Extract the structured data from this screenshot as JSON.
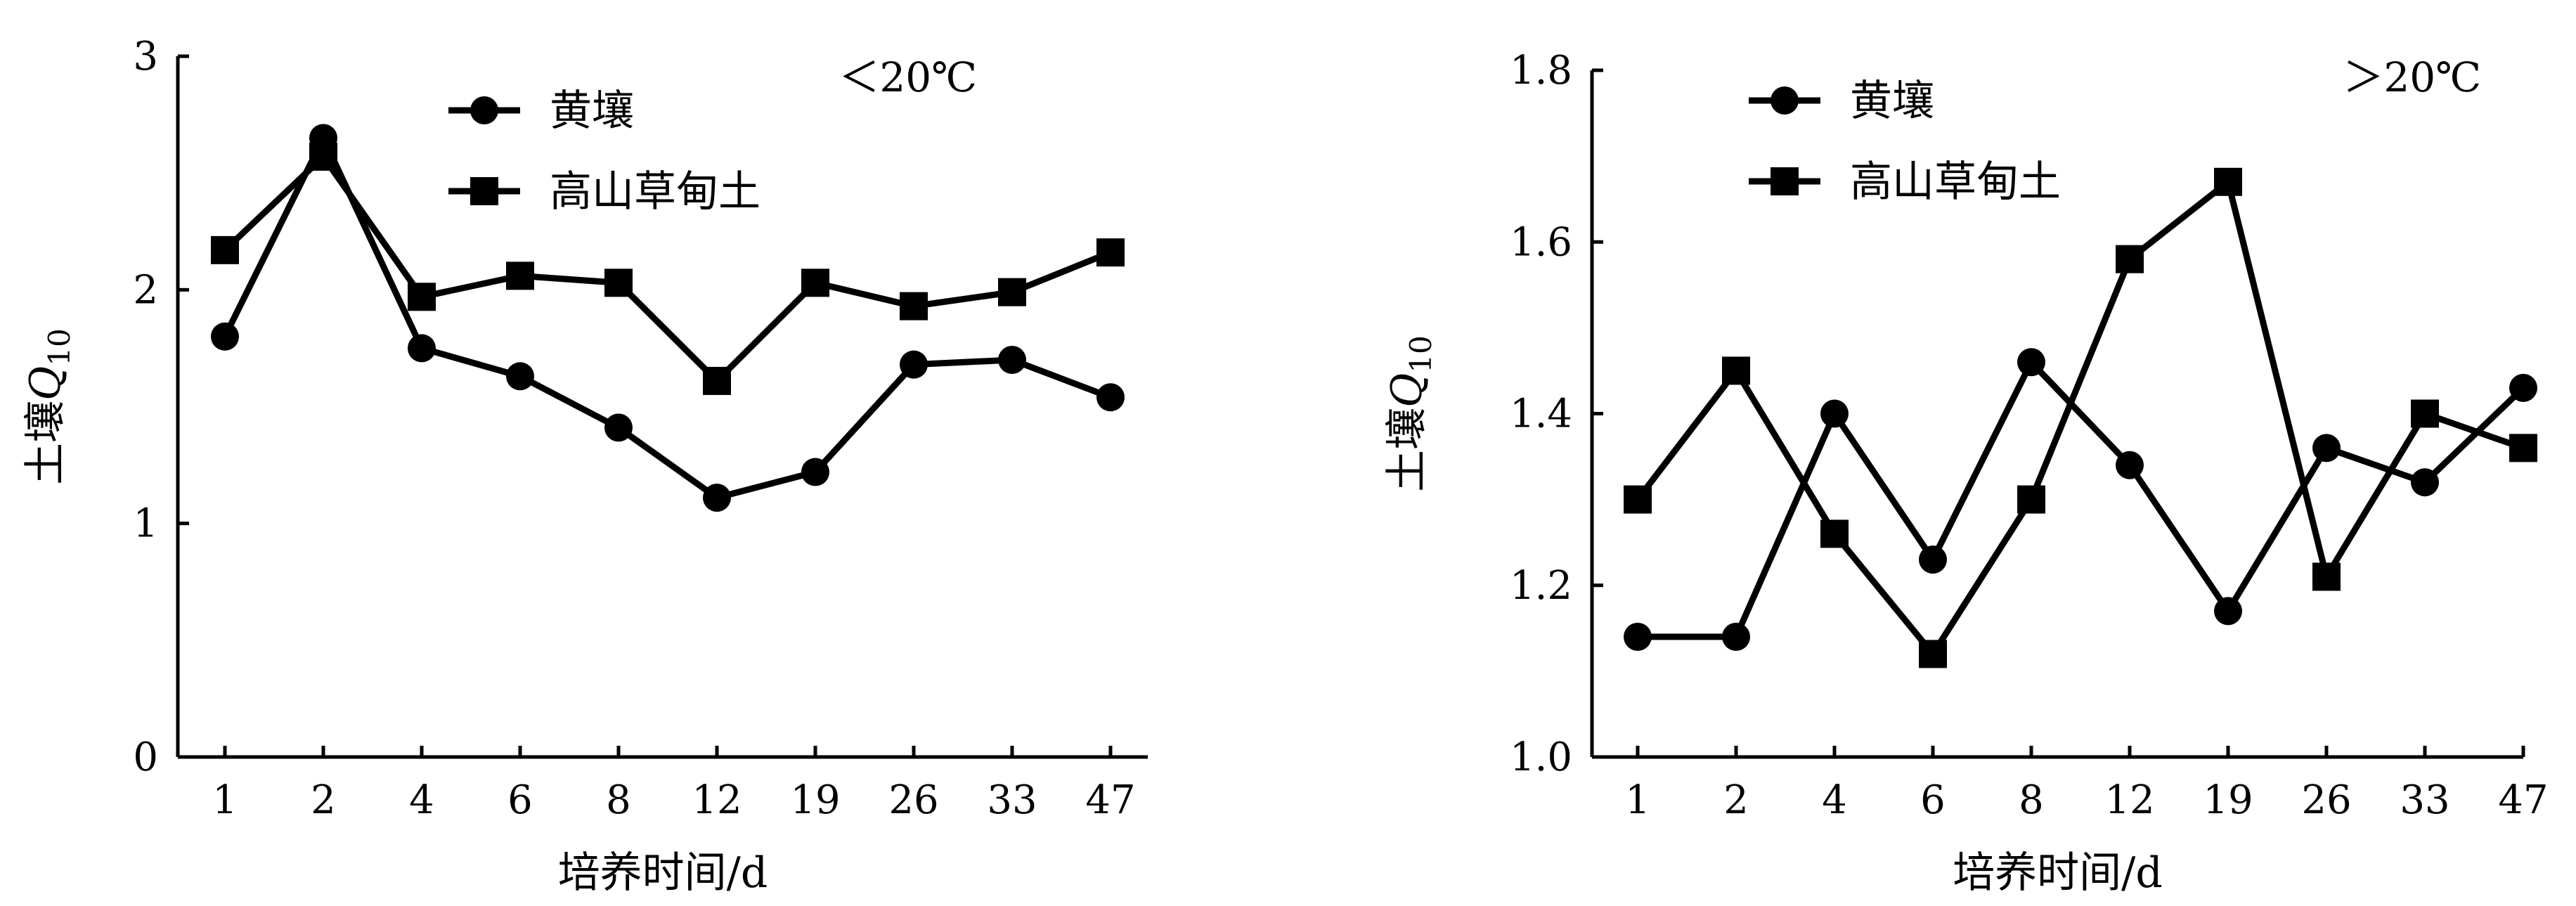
{
  "chart_data": [
    {
      "type": "line",
      "annotation": "＜20℃",
      "xlabel": "培养时间/d",
      "ylabel_prefix": "土壤",
      "ylabel_var": "Q",
      "ylabel_sub": "10",
      "categories": [
        "1",
        "2",
        "4",
        "6",
        "8",
        "12",
        "19",
        "26",
        "33",
        "47"
      ],
      "ylim": [
        0,
        3
      ],
      "yticks": [
        "0",
        "1",
        "2",
        "3"
      ],
      "legend_position": "top-left",
      "series": [
        {
          "name": "黄壤",
          "marker": "circle",
          "values": [
            1.8,
            2.65,
            1.75,
            1.63,
            1.41,
            1.11,
            1.22,
            1.68,
            1.7,
            1.54
          ]
        },
        {
          "name": "高山草甸土",
          "marker": "square",
          "values": [
            2.17,
            2.57,
            1.97,
            2.06,
            2.03,
            1.61,
            2.03,
            1.93,
            1.99,
            2.16
          ]
        }
      ]
    },
    {
      "type": "line",
      "annotation": "＞20℃",
      "xlabel": "培养时间/d",
      "ylabel_prefix": "土壤",
      "ylabel_var": "Q",
      "ylabel_sub": "10",
      "categories": [
        "1",
        "2",
        "4",
        "6",
        "8",
        "12",
        "19",
        "26",
        "33",
        "47"
      ],
      "ylim": [
        1.0,
        1.8
      ],
      "yticks": [
        "1.0",
        "1.2",
        "1.4",
        "1.6",
        "1.8"
      ],
      "legend_position": "top-left",
      "series": [
        {
          "name": "黄壤",
          "marker": "circle",
          "values": [
            1.14,
            1.14,
            1.4,
            1.23,
            1.46,
            1.34,
            1.17,
            1.36,
            1.32,
            1.43
          ]
        },
        {
          "name": "高山草甸土",
          "marker": "square",
          "values": [
            1.3,
            1.45,
            1.26,
            1.12,
            1.3,
            1.58,
            1.67,
            1.21,
            1.4,
            1.36
          ]
        }
      ]
    }
  ]
}
